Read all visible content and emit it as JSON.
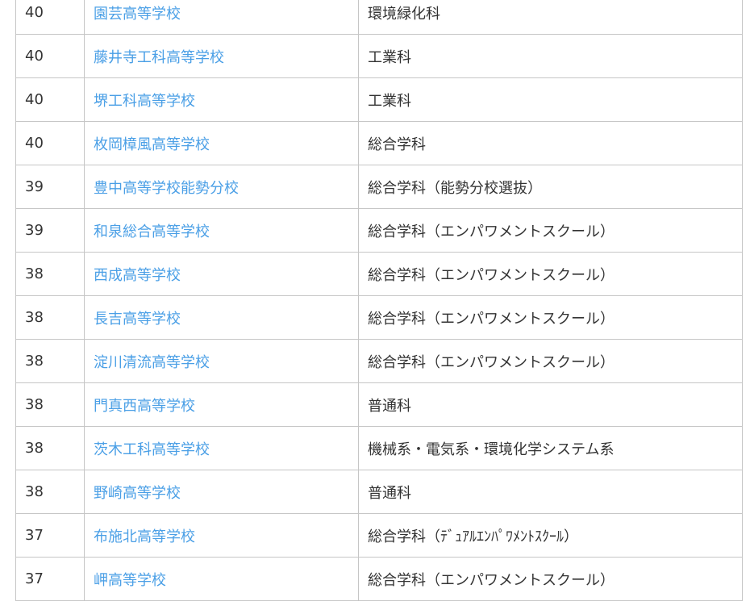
{
  "colors": {
    "link": "#4a9fe6",
    "text": "#333333",
    "border": "#c6c6c6"
  },
  "rows": [
    {
      "score": "40",
      "school": "園芸高等学校",
      "dept": "環境緑化科"
    },
    {
      "score": "40",
      "school": "藤井寺工科高等学校",
      "dept": "工業科"
    },
    {
      "score": "40",
      "school": "堺工科高等学校",
      "dept": "工業科"
    },
    {
      "score": "40",
      "school": "枚岡樟風高等学校",
      "dept": "総合学科"
    },
    {
      "score": "39",
      "school": "豊中高等学校能勢分校",
      "dept": "総合学科（能勢分校選抜）"
    },
    {
      "score": "39",
      "school": "和泉総合高等学校",
      "dept": "総合学科（エンパワメントスクール）"
    },
    {
      "score": "38",
      "school": "西成高等学校",
      "dept": "総合学科（エンパワメントスクール）"
    },
    {
      "score": "38",
      "school": "長吉高等学校",
      "dept": "総合学科（エンパワメントスクール）"
    },
    {
      "score": "38",
      "school": "淀川清流高等学校",
      "dept": "総合学科（エンパワメントスクール）"
    },
    {
      "score": "38",
      "school": "門真西高等学校",
      "dept": "普通科"
    },
    {
      "score": "38",
      "school": "茨木工科高等学校",
      "dept": "機械系・電気系・環境化学システム系"
    },
    {
      "score": "38",
      "school": "野崎高等学校",
      "dept": "普通科"
    },
    {
      "score": "37",
      "school": "布施北高等学校",
      "dept": "総合学科（ﾃﾞｭｱﾙｴﾝﾊﾟﾜﾒﾝﾄｽｸｰﾙ）"
    },
    {
      "score": "37",
      "school": "岬高等学校",
      "dept": "総合学科（エンパワメントスクール）"
    }
  ]
}
